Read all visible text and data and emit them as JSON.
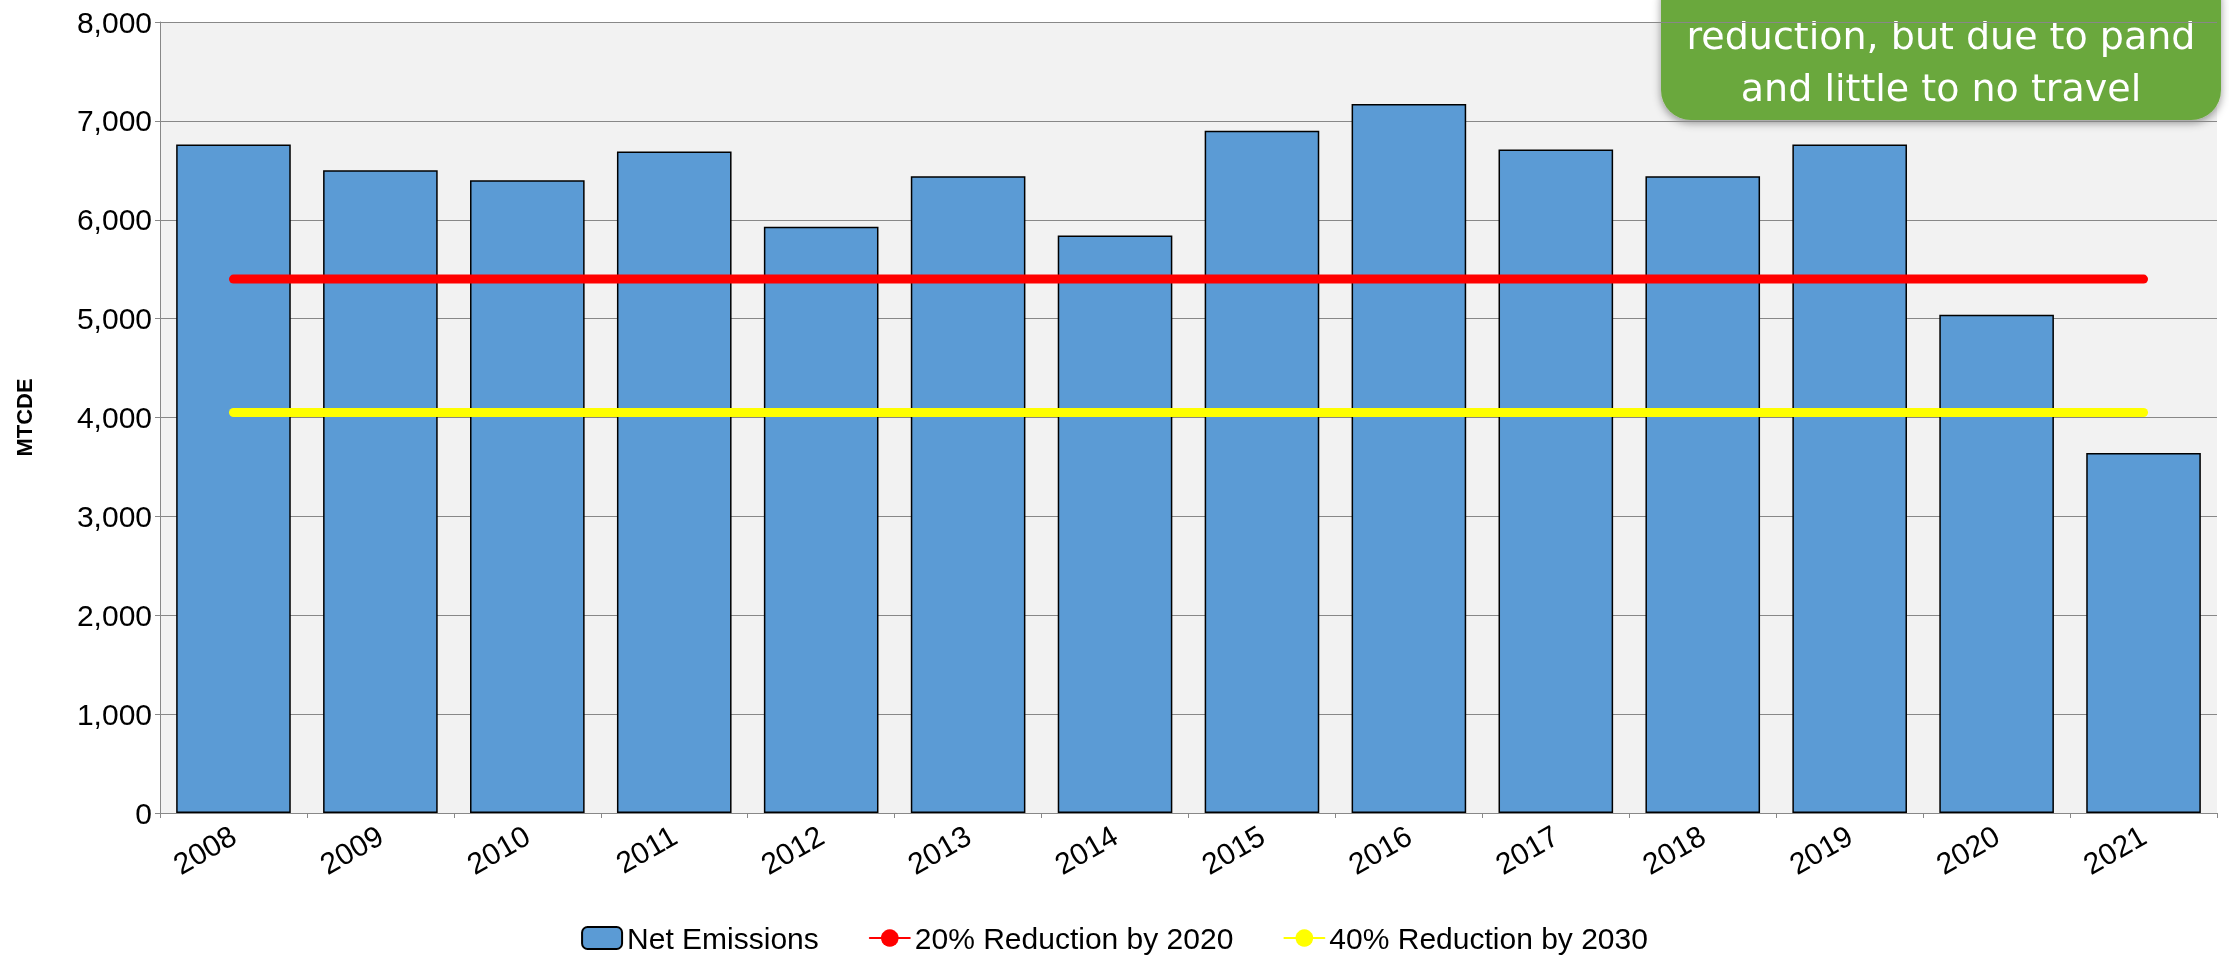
{
  "chart_data": {
    "type": "bar",
    "ylabel": "MTCDE",
    "categories": [
      "2008",
      "2009",
      "2010",
      "2011",
      "2012",
      "2013",
      "2014",
      "2015",
      "2016",
      "2017",
      "2018",
      "2019",
      "2020",
      "2021"
    ],
    "series": [
      {
        "name": "Net Emissions",
        "color": "#5b9bd5",
        "values": [
          6760,
          6500,
          6400,
          6690,
          5930,
          6440,
          5840,
          6900,
          7170,
          6710,
          6440,
          6760,
          5040,
          3640
        ]
      },
      {
        "name": "20% Reduction by 2020",
        "type": "line",
        "color": "#ff0000",
        "values": [
          5400,
          5400,
          5400,
          5400,
          5400,
          5400,
          5400,
          5400,
          5400,
          5400,
          5400,
          5400,
          5400,
          5400
        ]
      },
      {
        "name": "40% Reduction by 2030",
        "type": "line",
        "color": "#ffff00",
        "values": [
          4050,
          4050,
          4050,
          4050,
          4050,
          4050,
          4050,
          4050,
          4050,
          4050,
          4050,
          4050,
          4050,
          4050
        ]
      }
    ],
    "ylim": [
      0,
      8000
    ],
    "yticks": [
      0,
      {
        "value": 1000,
        "label": "1,000"
      },
      {
        "value": 2000,
        "label": "2,000"
      },
      {
        "value": 3000,
        "label": "3,000"
      },
      {
        "value": 4000,
        "label": "4,000"
      },
      {
        "value": 5000,
        "label": "5,000"
      },
      {
        "value": 6000,
        "label": "6,000"
      },
      {
        "value": 7000,
        "label": "7,000"
      },
      {
        "value": 8000,
        "label": "8,000"
      }
    ],
    "grid": "y",
    "legend": "bottom",
    "annotations": [
      "reduction, but due to pand\nand little to no travel"
    ]
  }
}
